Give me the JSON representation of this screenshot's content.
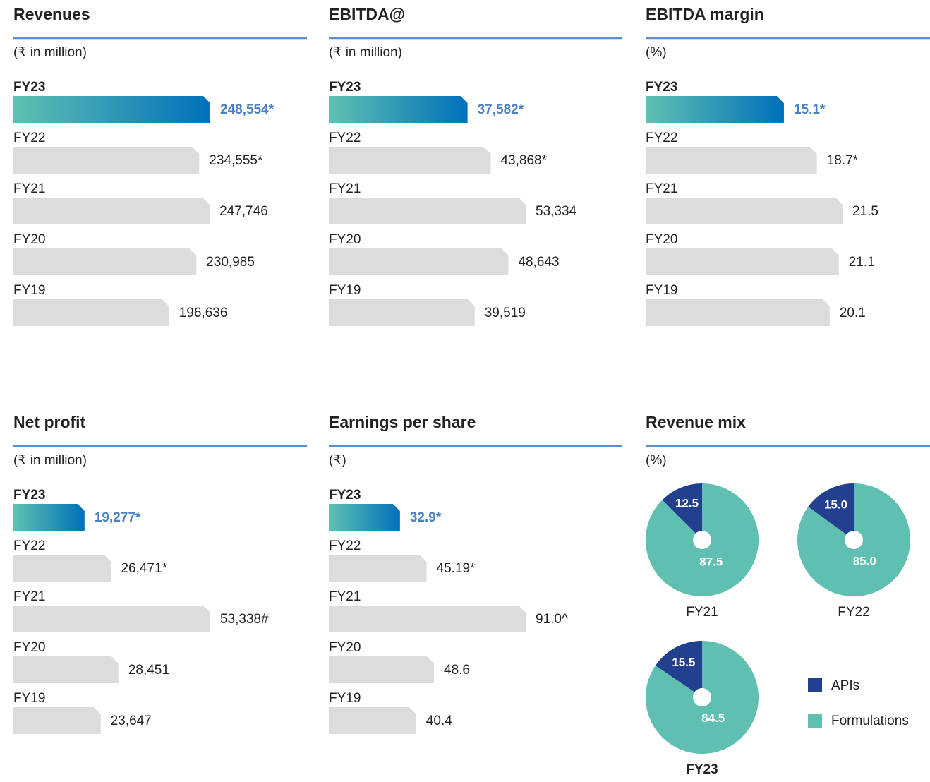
{
  "chart_data": [
    {
      "type": "bar",
      "title": "Revenues",
      "subtitle": "(₹ in million)",
      "categories": [
        "FY23",
        "FY22",
        "FY21",
        "FY20",
        "FY19"
      ],
      "values": [
        248554,
        234555,
        247746,
        230985,
        196636
      ],
      "value_labels": [
        "248,554*",
        "234,555*",
        "247,746",
        "230,985",
        "196,636"
      ],
      "color": "#dcdcdc",
      "highlight_colors": [
        "#5fc1b1",
        "#0070bb"
      ],
      "highlight_label_color": "#4a80c4"
    },
    {
      "type": "bar",
      "title": "EBITDA@",
      "subtitle": "(₹ in million)",
      "categories": [
        "FY23",
        "FY22",
        "FY21",
        "FY20",
        "FY19"
      ],
      "values": [
        37582,
        43868,
        53334,
        48643,
        39519
      ],
      "value_labels": [
        "37,582*",
        "43,868*",
        "53,334",
        "48,643",
        "39,519"
      ],
      "color": "#dcdcdc",
      "highlight_colors": [
        "#5fc1b1",
        "#0070bb"
      ],
      "highlight_label_color": "#4a80c4"
    },
    {
      "type": "bar",
      "title": "EBITDA margin",
      "subtitle": "(%)",
      "categories": [
        "FY23",
        "FY22",
        "FY21",
        "FY20",
        "FY19"
      ],
      "values": [
        15.1,
        18.7,
        21.5,
        21.1,
        20.1
      ],
      "value_labels": [
        "15.1*",
        "18.7*",
        "21.5",
        "21.1",
        "20.1"
      ],
      "color": "#dcdcdc",
      "highlight_colors": [
        "#5fc1b1",
        "#0070bb"
      ],
      "highlight_label_color": "#4a80c4"
    },
    {
      "type": "bar",
      "title": "Net profit",
      "subtitle": "(₹ in million)",
      "categories": [
        "FY23",
        "FY22",
        "FY21",
        "FY20",
        "FY19"
      ],
      "values": [
        19277,
        26471,
        53338,
        28451,
        23647
      ],
      "value_labels": [
        "19,277*",
        "26,471*",
        "53,338#",
        "28,451",
        "23,647"
      ],
      "color": "#dcdcdc",
      "highlight_colors": [
        "#5fc1b1",
        "#0070bb"
      ],
      "highlight_label_color": "#4a80c4"
    },
    {
      "type": "bar",
      "title": "Earnings per share",
      "subtitle": "(₹)",
      "categories": [
        "FY23",
        "FY22",
        "FY21",
        "FY20",
        "FY19"
      ],
      "values": [
        32.9,
        45.19,
        91.0,
        48.6,
        40.4
      ],
      "value_labels": [
        "32.9*",
        "45.19*",
        "91.0^",
        "48.6",
        "40.4"
      ],
      "color": "#dcdcdc",
      "highlight_colors": [
        "#5fc1b1",
        "#0070bb"
      ],
      "highlight_label_color": "#4a80c4"
    },
    {
      "type": "pie",
      "title": "Revenue mix",
      "subtitle": "(%)",
      "categories": [
        "APIs",
        "Formulations"
      ],
      "colors": [
        "#233f8f",
        "#5fbfb0"
      ],
      "pies": [
        {
          "name": "FY21",
          "values": [
            12.5,
            87.5
          ],
          "value_labels": [
            "12.5",
            "87.5"
          ]
        },
        {
          "name": "FY22",
          "values": [
            15.0,
            85.0
          ],
          "value_labels": [
            "15.0",
            "85.0"
          ]
        },
        {
          "name": "FY23",
          "values": [
            15.5,
            84.5
          ],
          "value_labels": [
            "15.5",
            "84.5"
          ]
        }
      ]
    }
  ]
}
